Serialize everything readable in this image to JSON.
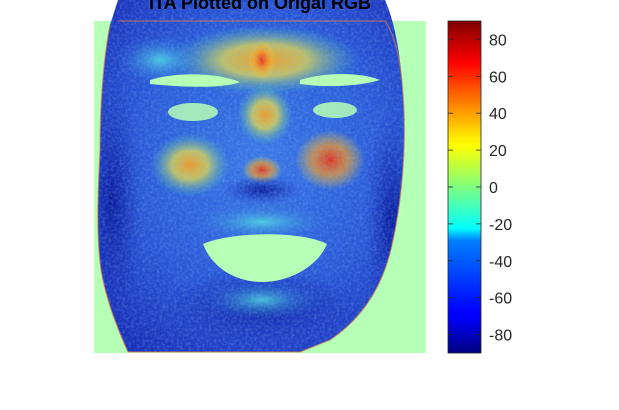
{
  "chart_data": {
    "type": "heatmap",
    "title": "ITA Plotted on Origal RGB",
    "image_subject": "face",
    "background_color": "#b6ffb6",
    "colormap": "jet",
    "colorbar": {
      "location": "right",
      "range": [
        -90,
        90
      ],
      "ticks": [
        80,
        60,
        40,
        20,
        0,
        -20,
        -40,
        -60,
        -80
      ],
      "tick_labels": [
        "80",
        "60",
        "40",
        "20",
        "0",
        "-20",
        "-40",
        "-60",
        "-80"
      ]
    }
  }
}
